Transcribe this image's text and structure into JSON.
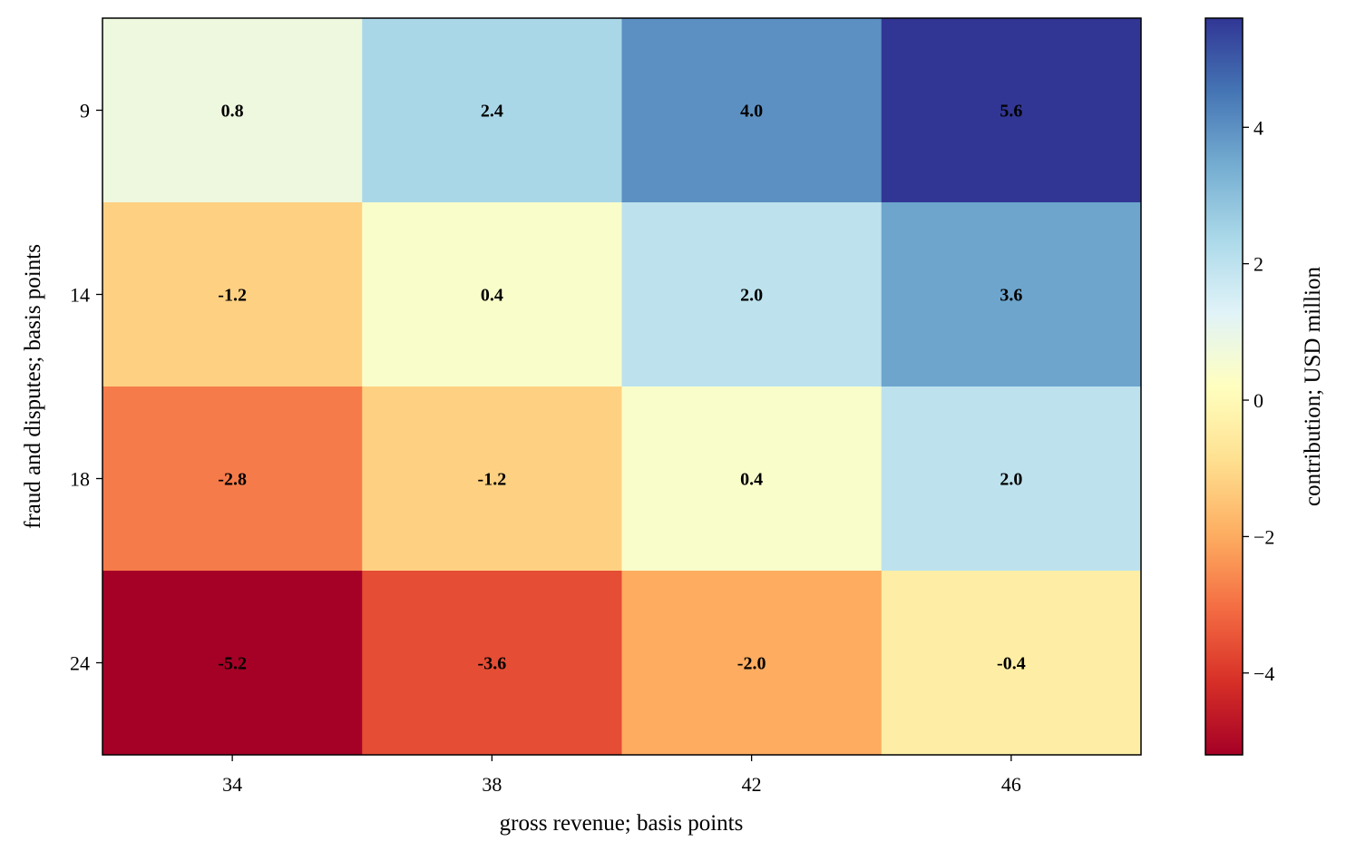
{
  "chart_data": {
    "type": "heatmap",
    "title": "",
    "xlabel": "gross revenue; basis points",
    "ylabel": "fraud and disputes; basis points",
    "x_categories": [
      "34",
      "38",
      "42",
      "46"
    ],
    "y_categories": [
      "9",
      "14",
      "18",
      "24"
    ],
    "values": [
      [
        0.8,
        2.4,
        4.0,
        5.6
      ],
      [
        -1.2,
        0.4,
        2.0,
        3.6
      ],
      [
        -2.8,
        -1.2,
        0.4,
        2.0
      ],
      [
        -5.2,
        -3.6,
        -2.0,
        -0.4
      ]
    ],
    "cell_labels": [
      [
        "0.8",
        "2.4",
        "4.0",
        "5.6"
      ],
      [
        "-1.2",
        "0.4",
        "2.0",
        "3.6"
      ],
      [
        "-2.8",
        "-1.2",
        "0.4",
        "2.0"
      ],
      [
        "-5.2",
        "-3.6",
        "-2.0",
        "-0.4"
      ]
    ],
    "colormap": "RdYlBu",
    "vmin": -5.2,
    "vmax": 5.6,
    "colorbar": {
      "label": "contribution; USD million",
      "ticks": [
        4,
        2,
        0,
        -2,
        -4
      ],
      "tick_labels": [
        "4",
        "2",
        "0",
        "−2",
        "−4"
      ]
    }
  }
}
